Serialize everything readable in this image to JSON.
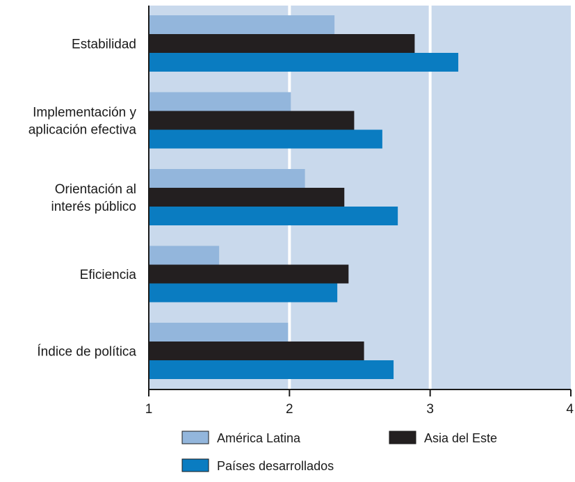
{
  "chart_data": {
    "type": "bar",
    "orientation": "horizontal",
    "categories": [
      [
        "Estabilidad"
      ],
      [
        "Implementación y",
        "aplicación efectiva"
      ],
      [
        "Orientación al",
        "interés público"
      ],
      [
        "Eficiencia"
      ],
      [
        "Índice de política"
      ]
    ],
    "series": [
      {
        "name": "América Latina",
        "color": "#93b6dc",
        "values": [
          2.32,
          2.01,
          2.11,
          1.5,
          1.99
        ]
      },
      {
        "name": "Asia del Este",
        "color": "#231f20",
        "values": [
          2.89,
          2.46,
          2.39,
          2.42,
          2.53
        ]
      },
      {
        "name": "Países desarrollados",
        "color": "#0a7cc1",
        "values": [
          3.2,
          2.66,
          2.77,
          2.34,
          2.74
        ]
      }
    ],
    "xlim": [
      1,
      4
    ],
    "xticks": [
      "1",
      "2",
      "3",
      "4"
    ],
    "grid": true,
    "plot_background": "#c9d9ec",
    "legend_position": "bottom"
  }
}
